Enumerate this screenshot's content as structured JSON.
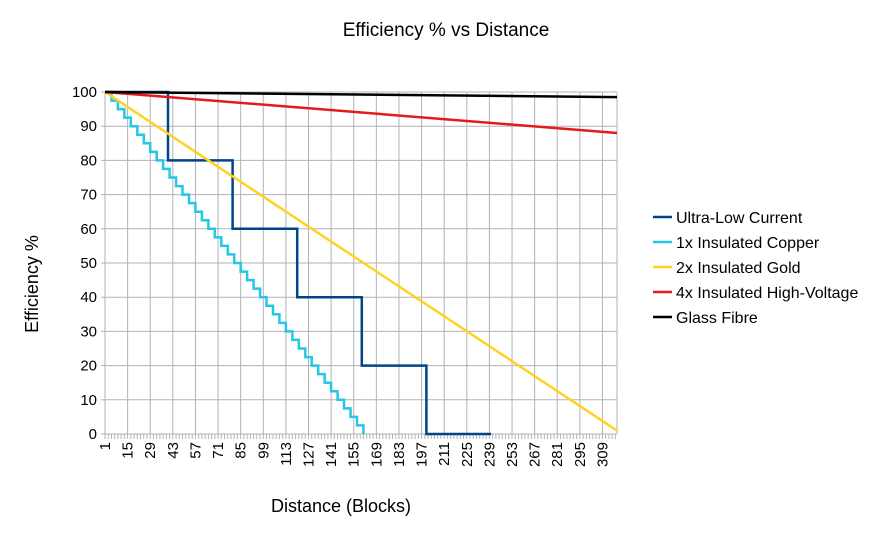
{
  "chart_data": {
    "type": "line",
    "title": "Efficiency % vs Distance",
    "xlabel": "Distance (Blocks)",
    "ylabel": "Efficiency %",
    "xlim": [
      1,
      318
    ],
    "ylim": [
      0,
      100
    ],
    "yticks": [
      0,
      10,
      20,
      30,
      40,
      50,
      60,
      70,
      80,
      90,
      100
    ],
    "xtick_labels": [
      1,
      15,
      29,
      43,
      57,
      71,
      85,
      99,
      113,
      127,
      141,
      155,
      169,
      183,
      197,
      211,
      225,
      239,
      253,
      267,
      281,
      295,
      309
    ],
    "legend_position": "right",
    "series": [
      {
        "name": "Ultra-Low Current",
        "color": "#004586",
        "points": [
          [
            1,
            100
          ],
          [
            40,
            100
          ],
          [
            40,
            80
          ],
          [
            80,
            80
          ],
          [
            80,
            60
          ],
          [
            120,
            60
          ],
          [
            120,
            40
          ],
          [
            160,
            40
          ],
          [
            160,
            20
          ],
          [
            200,
            20
          ],
          [
            200,
            0
          ],
          [
            240,
            0
          ]
        ]
      },
      {
        "name": "1x Insulated Copper",
        "color": "#22c8e5",
        "step": 4,
        "points": [
          [
            1,
            100
          ],
          [
            161,
            0
          ]
        ]
      },
      {
        "name": "2x Insulated Gold",
        "color": "#ffd320",
        "points": [
          [
            1,
            100
          ],
          [
            318,
            1
          ]
        ]
      },
      {
        "name": "4x Insulated High-Voltage",
        "color": "#e41a1c",
        "points": [
          [
            1,
            100
          ],
          [
            318,
            88
          ]
        ]
      },
      {
        "name": "Glass Fibre",
        "color": "#000000",
        "points": [
          [
            1,
            100
          ],
          [
            318,
            98.5
          ]
        ]
      }
    ]
  }
}
